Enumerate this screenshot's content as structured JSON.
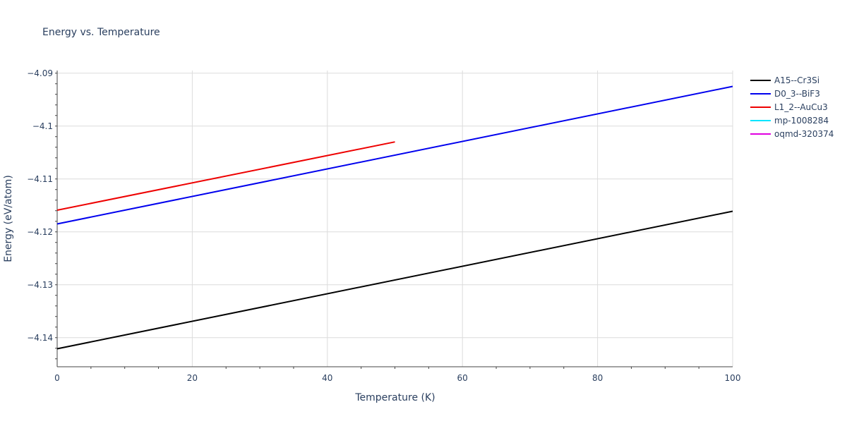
{
  "chart_data": {
    "type": "line",
    "title": "Energy vs. Temperature",
    "xlabel": "Temperature (K)",
    "ylabel": "Energy (eV/atom)",
    "xlim": [
      0,
      100
    ],
    "ylim": [
      -4.1455,
      -4.0895
    ],
    "grid": true,
    "legend_position": "top-right",
    "x_ticks": [
      0,
      20,
      40,
      60,
      80,
      100
    ],
    "x_tick_labels": [
      "0",
      "20",
      "40",
      "60",
      "80",
      "100"
    ],
    "y_ticks": [
      -4.09,
      -4.1,
      -4.11,
      -4.12,
      -4.13,
      -4.14
    ],
    "y_tick_labels": [
      "−4.09",
      "−4.1",
      "−4.11",
      "−4.12",
      "−4.13",
      "−4.14"
    ],
    "series": [
      {
        "name": "A15--Cr3Si",
        "color": "#000000",
        "x": [
          0,
          100
        ],
        "y": [
          -4.1421,
          -4.1161
        ]
      },
      {
        "name": "D0_3--BiF3",
        "color": "#0000ee",
        "x": [
          0,
          100
        ],
        "y": [
          -4.1185,
          -4.0925
        ]
      },
      {
        "name": "L1_2--AuCu3",
        "color": "#ee0000",
        "x": [
          0,
          50
        ],
        "y": [
          -4.1159,
          -4.103
        ]
      },
      {
        "name": "mp-1008284",
        "color": "#00e5ff",
        "x": [],
        "y": []
      },
      {
        "name": "oqmd-320374",
        "color": "#e000e0",
        "x": [],
        "y": []
      }
    ]
  }
}
